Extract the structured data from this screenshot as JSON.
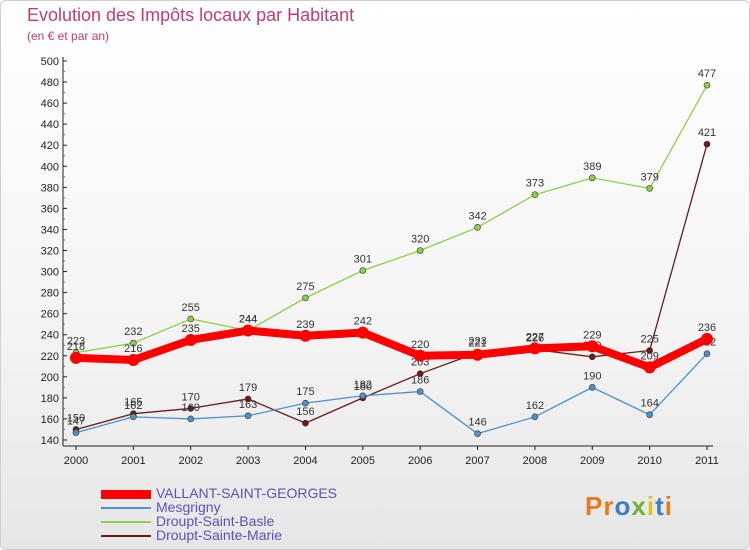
{
  "title": "Evolution des Impôts locaux par Habitant",
  "subtitle": "(en € et par an)",
  "logo": "Proxiti",
  "chart_data": {
    "type": "line",
    "title": "Evolution des Impôts locaux par Habitant",
    "subtitle": "(en € et par an)",
    "x": [
      "2000",
      "2001",
      "2002",
      "2003",
      "2004",
      "2005",
      "2006",
      "2007",
      "2008",
      "2009",
      "2010",
      "2011"
    ],
    "yticks": [
      140,
      160,
      180,
      200,
      220,
      240,
      260,
      280,
      300,
      320,
      340,
      360,
      380,
      400,
      420,
      440,
      460,
      480,
      500
    ],
    "ylim": [
      140,
      500
    ],
    "grid": false,
    "legend_position": "bottom-left",
    "series": [
      {
        "name": "VALLANT-SAINT-GEORGES",
        "color": "#ff0000",
        "values": [
          218,
          216,
          235,
          244,
          239,
          242,
          220,
          221,
          227,
          229,
          209,
          236
        ]
      },
      {
        "name": "Mesgrigny",
        "color": "#4f92c9",
        "values": [
          147,
          162,
          160,
          163,
          175,
          182,
          186,
          146,
          162,
          190,
          164,
          222
        ]
      },
      {
        "name": "Droupt-Saint-Basle",
        "color": "#8fce4a",
        "values": [
          223,
          232,
          255,
          244,
          275,
          301,
          320,
          342,
          373,
          389,
          379,
          477
        ]
      },
      {
        "name": "Droupt-Sainte-Marie",
        "color": "#6b1a1a",
        "values": [
          150,
          165,
          170,
          179,
          156,
          180,
          203,
          223,
          226,
          219,
          225,
          421
        ]
      }
    ]
  }
}
